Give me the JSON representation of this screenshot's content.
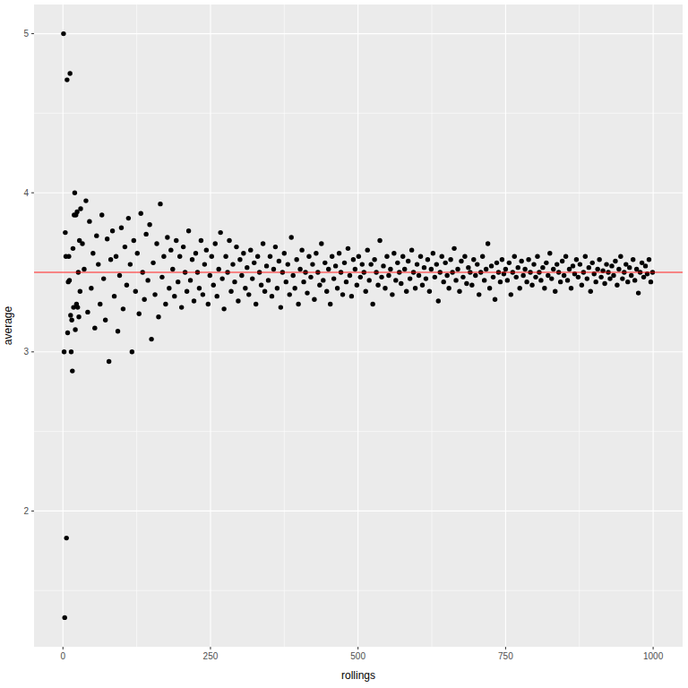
{
  "chart_data": {
    "type": "scatter",
    "x_label": "rollings",
    "y_label": "average",
    "color": "#000000",
    "marker": "circle",
    "grid": true,
    "hline": 3.5,
    "hline_color": "#ff0000",
    "xlim": [
      -48.95,
      1049.95
    ],
    "xticks": [
      0,
      250,
      500,
      750,
      1000
    ],
    "ylim": [
      1.1465,
      5.1835
    ],
    "yticks": [
      2,
      3,
      4,
      5
    ],
    "x": [
      1,
      2,
      3,
      4,
      5,
      6,
      7,
      8,
      9,
      10,
      11,
      12,
      13,
      14,
      15,
      16,
      17,
      18,
      19,
      20,
      21,
      22,
      23,
      24,
      25,
      26,
      27,
      28,
      29,
      30,
      33,
      36,
      39,
      42,
      45,
      48,
      51,
      54,
      57,
      60,
      63,
      66,
      69,
      72,
      75,
      78,
      81,
      84,
      87,
      90,
      93,
      96,
      99,
      102,
      105,
      108,
      111,
      114,
      117,
      120,
      123,
      126,
      129,
      132,
      135,
      138,
      141,
      144,
      147,
      150,
      153,
      156,
      159,
      162,
      165,
      168,
      171,
      174,
      177,
      180,
      183,
      186,
      189,
      192,
      195,
      198,
      201,
      204,
      207,
      210,
      213,
      216,
      219,
      222,
      225,
      228,
      231,
      234,
      237,
      240,
      243,
      246,
      249,
      252,
      255,
      258,
      261,
      264,
      267,
      270,
      273,
      276,
      279,
      282,
      285,
      288,
      291,
      294,
      297,
      300,
      303,
      306,
      309,
      312,
      315,
      318,
      321,
      324,
      327,
      330,
      333,
      336,
      339,
      342,
      345,
      348,
      351,
      354,
      357,
      360,
      363,
      366,
      369,
      372,
      375,
      378,
      381,
      384,
      387,
      390,
      393,
      396,
      399,
      402,
      405,
      408,
      411,
      414,
      417,
      420,
      423,
      426,
      429,
      432,
      435,
      438,
      441,
      444,
      447,
      450,
      453,
      456,
      459,
      462,
      465,
      468,
      471,
      474,
      477,
      480,
      483,
      486,
      489,
      492,
      495,
      498,
      501,
      504,
      507,
      510,
      513,
      516,
      519,
      522,
      525,
      528,
      531,
      534,
      537,
      540,
      543,
      546,
      549,
      552,
      555,
      558,
      561,
      564,
      567,
      570,
      573,
      576,
      579,
      582,
      585,
      588,
      591,
      594,
      597,
      600,
      603,
      606,
      609,
      612,
      615,
      618,
      621,
      624,
      627,
      630,
      633,
      636,
      639,
      642,
      645,
      648,
      651,
      654,
      657,
      660,
      663,
      666,
      669,
      672,
      675,
      678,
      681,
      684,
      687,
      690,
      693,
      696,
      699,
      702,
      705,
      708,
      711,
      714,
      717,
      720,
      723,
      726,
      729,
      732,
      735,
      738,
      741,
      744,
      747,
      750,
      753,
      756,
      759,
      762,
      765,
      768,
      771,
      774,
      777,
      780,
      783,
      786,
      789,
      792,
      795,
      798,
      801,
      804,
      807,
      810,
      813,
      816,
      819,
      822,
      825,
      828,
      831,
      834,
      837,
      840,
      843,
      846,
      849,
      852,
      855,
      858,
      861,
      864,
      867,
      870,
      873,
      876,
      879,
      882,
      885,
      888,
      891,
      894,
      897,
      900,
      903,
      906,
      909,
      912,
      915,
      918,
      921,
      924,
      927,
      930,
      933,
      936,
      939,
      942,
      945,
      948,
      951,
      954,
      957,
      960,
      963,
      966,
      969,
      972,
      975,
      978,
      981,
      984,
      987,
      990,
      993,
      996,
      999
    ],
    "values": [
      5.0,
      3.0,
      1.33,
      3.75,
      3.6,
      1.83,
      4.71,
      3.12,
      3.44,
      3.6,
      3.45,
      4.75,
      3.23,
      3.0,
      3.2,
      2.88,
      3.65,
      3.28,
      3.86,
      4.0,
      3.14,
      3.86,
      3.3,
      3.88,
      3.28,
      3.5,
      3.22,
      3.7,
      3.38,
      3.9,
      3.68,
      3.52,
      3.95,
      3.25,
      3.82,
      3.4,
      3.62,
      3.15,
      3.73,
      3.55,
      3.3,
      3.86,
      3.46,
      3.2,
      3.71,
      2.94,
      3.58,
      3.76,
      3.35,
      3.6,
      3.13,
      3.48,
      3.78,
      3.27,
      3.66,
      3.42,
      3.84,
      3.55,
      3.0,
      3.7,
      3.38,
      3.62,
      3.24,
      3.87,
      3.5,
      3.33,
      3.74,
      3.45,
      3.8,
      3.08,
      3.56,
      3.36,
      3.68,
      3.22,
      3.93,
      3.47,
      3.6,
      3.3,
      3.72,
      3.4,
      3.64,
      3.52,
      3.35,
      3.7,
      3.44,
      3.6,
      3.28,
      3.66,
      3.5,
      3.38,
      3.76,
      3.45,
      3.58,
      3.32,
      3.62,
      3.5,
      3.4,
      3.7,
      3.36,
      3.55,
      3.64,
      3.3,
      3.48,
      3.6,
      3.42,
      3.68,
      3.35,
      3.52,
      3.75,
      3.46,
      3.27,
      3.6,
      3.5,
      3.7,
      3.38,
      3.55,
      3.44,
      3.66,
      3.32,
      3.58,
      3.48,
      3.62,
      3.4,
      3.53,
      3.36,
      3.64,
      3.46,
      3.56,
      3.3,
      3.6,
      3.5,
      3.42,
      3.68,
      3.38,
      3.54,
      3.45,
      3.6,
      3.35,
      3.52,
      3.66,
      3.4,
      3.57,
      3.28,
      3.5,
      3.62,
      3.44,
      3.55,
      3.36,
      3.72,
      3.48,
      3.4,
      3.58,
      3.3,
      3.52,
      3.64,
      3.44,
      3.5,
      3.37,
      3.6,
      3.47,
      3.55,
      3.33,
      3.62,
      3.5,
      3.42,
      3.68,
      3.45,
      3.56,
      3.38,
      3.52,
      3.3,
      3.6,
      3.46,
      3.54,
      3.4,
      3.62,
      3.5,
      3.36,
      3.56,
      3.44,
      3.65,
      3.48,
      3.35,
      3.58,
      3.52,
      3.42,
      3.6,
      3.47,
      3.55,
      3.5,
      3.38,
      3.64,
      3.45,
      3.55,
      3.3,
      3.58,
      3.5,
      3.42,
      3.7,
      3.47,
      3.54,
      3.4,
      3.6,
      3.48,
      3.52,
      3.36,
      3.62,
      3.45,
      3.56,
      3.5,
      3.43,
      3.6,
      3.52,
      3.38,
      3.57,
      3.46,
      3.64,
      3.5,
      3.4,
      3.55,
      3.48,
      3.6,
      3.42,
      3.53,
      3.46,
      3.58,
      3.38,
      3.52,
      3.62,
      3.47,
      3.55,
      3.32,
      3.5,
      3.6,
      3.44,
      3.56,
      3.48,
      3.4,
      3.58,
      3.5,
      3.65,
      3.45,
      3.52,
      3.38,
      3.57,
      3.47,
      3.6,
      3.43,
      3.53,
      3.5,
      3.42,
      3.58,
      3.48,
      3.55,
      3.36,
      3.5,
      3.6,
      3.45,
      3.52,
      3.68,
      3.4,
      3.54,
      3.47,
      3.33,
      3.56,
      3.5,
      3.44,
      3.58,
      3.49,
      3.52,
      3.45,
      3.56,
      3.36,
      3.5,
      3.6,
      3.47,
      3.53,
      3.4,
      3.57,
      3.48,
      3.52,
      3.44,
      3.58,
      3.5,
      3.42,
      3.55,
      3.47,
      3.6,
      3.5,
      3.45,
      3.53,
      3.4,
      3.56,
      3.48,
      3.62,
      3.46,
      3.52,
      3.38,
      3.55,
      3.5,
      3.44,
      3.57,
      3.48,
      3.6,
      3.45,
      3.52,
      3.4,
      3.54,
      3.49,
      3.58,
      3.47,
      3.55,
      3.42,
      3.5,
      3.6,
      3.46,
      3.53,
      3.38,
      3.56,
      3.49,
      3.44,
      3.52,
      3.58,
      3.47,
      3.51,
      3.43,
      3.55,
      3.5,
      3.46,
      3.54,
      3.48,
      3.57,
      3.42,
      3.52,
      3.6,
      3.46,
      3.5,
      3.55,
      3.44,
      3.53,
      3.48,
      3.58,
      3.45,
      3.52,
      3.37,
      3.5,
      3.56,
      3.47,
      3.54,
      3.49,
      3.58,
      3.44,
      3.5
    ]
  }
}
